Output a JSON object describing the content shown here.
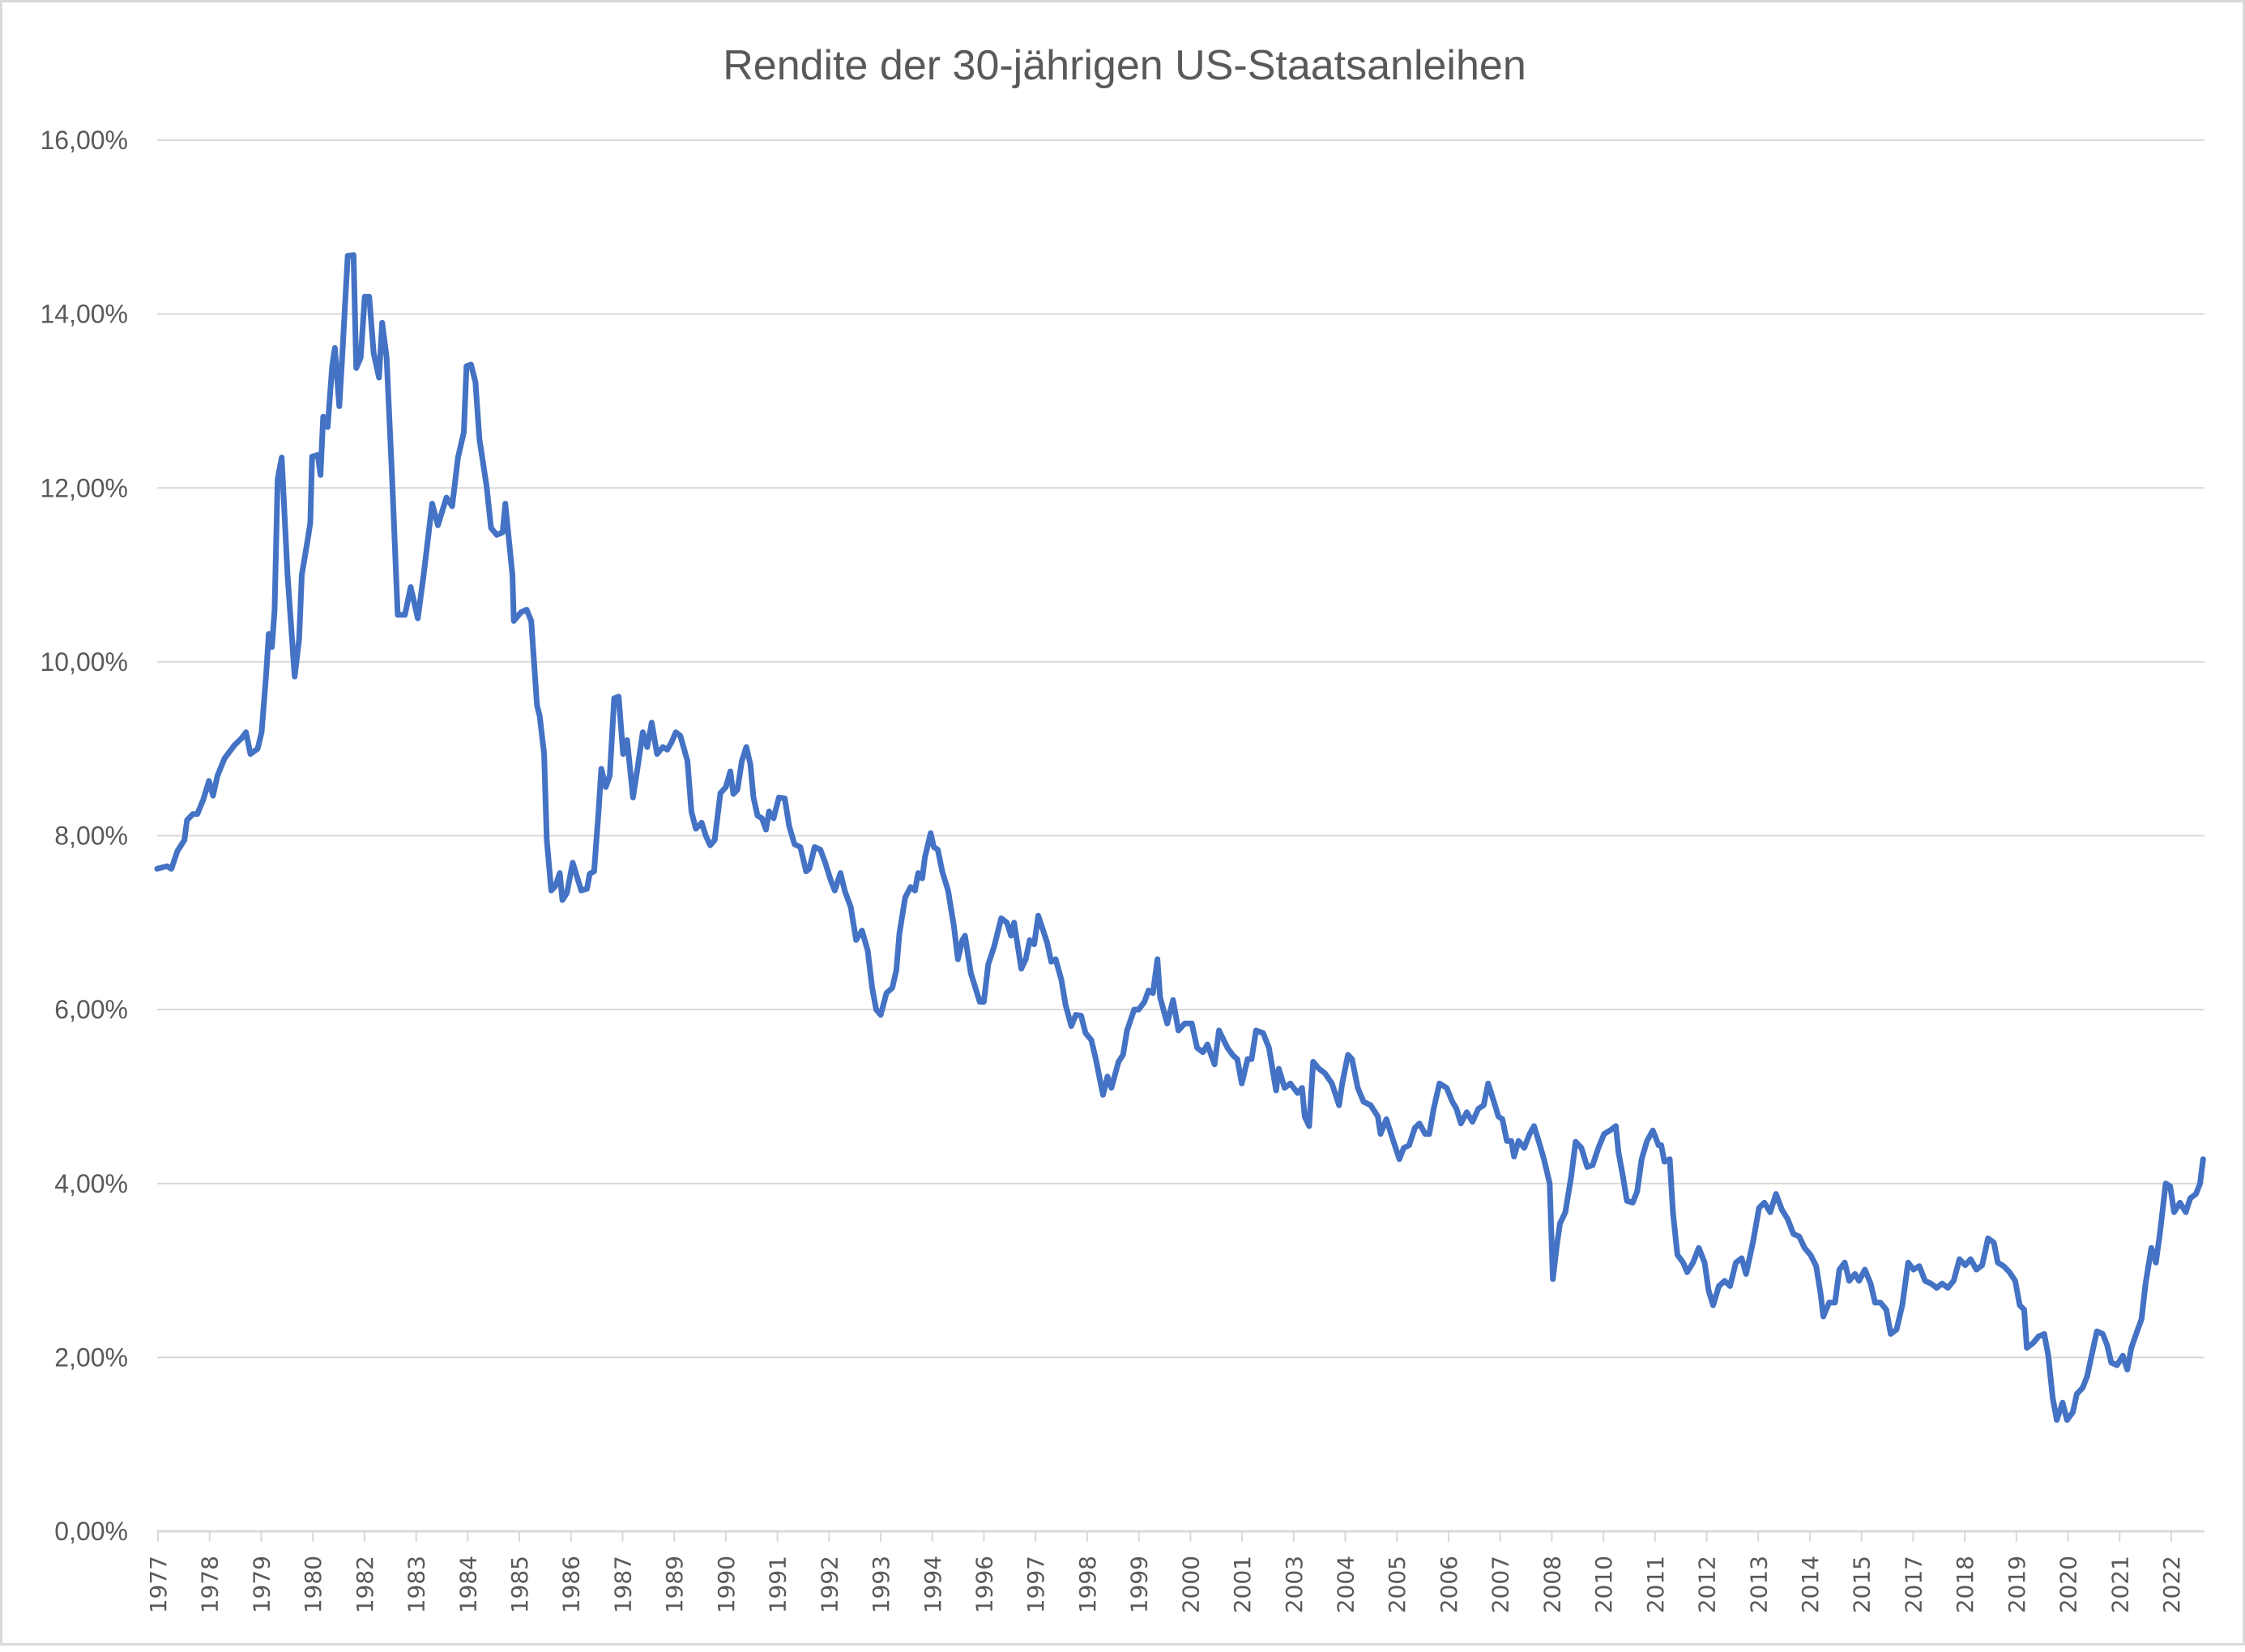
{
  "chart_data": {
    "type": "line",
    "title": "Rendite der 30-jährigen US-Staatsanleihen",
    "xlabel": "",
    "ylabel": "",
    "ylim": [
      0,
      16
    ],
    "y_tick_labels": [
      "0,00%",
      "2,00%",
      "4,00%",
      "6,00%",
      "8,00%",
      "10,00%",
      "12,00%",
      "14,00%",
      "16,00%"
    ],
    "x_tick_labels": [
      "1977",
      "1978",
      "1979",
      "1980",
      "1982",
      "1983",
      "1984",
      "1985",
      "1986",
      "1987",
      "1989",
      "1990",
      "1991",
      "1992",
      "1993",
      "1994",
      "1996",
      "1997",
      "1998",
      "1999",
      "2000",
      "2001",
      "2003",
      "2004",
      "2005",
      "2006",
      "2007",
      "2008",
      "2010",
      "2011",
      "2012",
      "2013",
      "2014",
      "2015",
      "2017",
      "2018",
      "2019",
      "2020",
      "2021",
      "2022"
    ],
    "xlim": [
      1977.0,
      2022.87
    ],
    "grid": "horizontal",
    "legend": "none",
    "series_color": "#4472C4",
    "series": [
      {
        "x": [
          1977.0,
          1977.22,
          1977.32,
          1977.45,
          1977.61,
          1977.67,
          1977.8,
          1977.9,
          1978.03,
          1978.16,
          1978.25,
          1978.35,
          1978.51,
          1978.73,
          1978.89,
          1978.99,
          1979.09,
          1979.25,
          1979.34,
          1979.44,
          1979.5,
          1979.57,
          1979.63,
          1979.7,
          1979.79,
          1979.92,
          1980.08,
          1980.18,
          1980.24,
          1980.37,
          1980.43,
          1980.47,
          1980.6,
          1980.66,
          1980.72,
          1980.82,
          1980.92,
          1980.98,
          1981.08,
          1981.14,
          1981.27,
          1981.4,
          1981.46,
          1981.56,
          1981.65,
          1981.75,
          1981.85,
          1981.97,
          1982.04,
          1982.14,
          1982.26,
          1982.39,
          1982.55,
          1982.68,
          1982.84,
          1982.97,
          1983.16,
          1983.29,
          1983.48,
          1983.61,
          1983.74,
          1983.87,
          1983.93,
          1984.03,
          1984.13,
          1984.22,
          1984.38,
          1984.48,
          1984.61,
          1984.74,
          1984.8,
          1984.96,
          1984.99,
          1985.15,
          1985.28,
          1985.38,
          1985.51,
          1985.57,
          1985.67,
          1985.73,
          1985.83,
          1985.92,
          1986.02,
          1986.08,
          1986.18,
          1986.31,
          1986.5,
          1986.63,
          1986.69,
          1986.79,
          1986.89,
          1986.95,
          1987.05,
          1987.14,
          1987.24,
          1987.34,
          1987.44,
          1987.53,
          1987.66,
          1987.76,
          1987.88,
          1987.98,
          1988.08,
          1988.2,
          1988.33,
          1988.43,
          1988.52,
          1988.62,
          1988.72,
          1988.88,
          1988.97,
          1989.07,
          1989.2,
          1989.29,
          1989.39,
          1989.49,
          1989.62,
          1989.74,
          1989.84,
          1989.91,
          1990.0,
          1990.1,
          1990.2,
          1990.29,
          1990.36,
          1990.45,
          1990.55,
          1990.64,
          1990.71,
          1990.81,
          1990.93,
          1991.06,
          1991.16,
          1991.28,
          1991.41,
          1991.54,
          1991.61,
          1991.73,
          1991.86,
          1991.96,
          1992.09,
          1992.18,
          1992.31,
          1992.41,
          1992.54,
          1992.66,
          1992.79,
          1992.92,
          1993.02,
          1993.11,
          1993.21,
          1993.34,
          1993.47,
          1993.56,
          1993.63,
          1993.76,
          1993.88,
          1993.98,
          1994.05,
          1994.14,
          1994.2,
          1994.33,
          1994.4,
          1994.49,
          1994.59,
          1994.72,
          1994.85,
          1994.94,
          1995.04,
          1995.1,
          1995.23,
          1995.43,
          1995.52,
          1995.62,
          1995.75,
          1995.91,
          1996.04,
          1996.13,
          1996.2,
          1996.36,
          1996.46,
          1996.55,
          1996.65,
          1996.74,
          1996.94,
          1997.03,
          1997.13,
          1997.26,
          1997.35,
          1997.48,
          1997.58,
          1997.7,
          1997.8,
          1997.93,
          1998.03,
          1998.19,
          1998.29,
          1998.38,
          1998.54,
          1998.64,
          1998.73,
          1998.89,
          1998.99,
          1999.12,
          1999.21,
          1999.31,
          1999.41,
          1999.47,
          1999.63,
          1999.76,
          1999.88,
          2000.02,
          2000.18,
          2000.3,
          2000.43,
          2000.53,
          2000.69,
          2000.79,
          2000.98,
          2001.11,
          2001.2,
          2001.3,
          2001.43,
          2001.52,
          2001.62,
          2001.78,
          2001.91,
          2002.07,
          2002.13,
          2002.26,
          2002.39,
          2002.55,
          2002.65,
          2002.71,
          2002.81,
          2002.9,
          2003.03,
          2003.16,
          2003.32,
          2003.48,
          2003.55,
          2003.68,
          2003.77,
          2003.9,
          2004.03,
          2004.19,
          2004.35,
          2004.41,
          2004.54,
          2004.67,
          2004.83,
          2004.93,
          2005.05,
          2005.18,
          2005.28,
          2005.41,
          2005.5,
          2005.6,
          2005.73,
          2005.89,
          2006.02,
          2006.11,
          2006.21,
          2006.34,
          2006.47,
          2006.6,
          2006.72,
          2006.82,
          2006.95,
          2007.05,
          2007.14,
          2007.24,
          2007.34,
          2007.4,
          2007.5,
          2007.63,
          2007.75,
          2007.85,
          2007.98,
          2008.07,
          2008.2,
          2008.27,
          2008.36,
          2008.43,
          2008.55,
          2008.68,
          2008.78,
          2008.91,
          2009.04,
          2009.16,
          2009.29,
          2009.42,
          2009.55,
          2009.68,
          2009.74,
          2009.84,
          2009.93,
          2010.06,
          2010.16,
          2010.26,
          2010.38,
          2010.51,
          2010.64,
          2010.7,
          2010.77,
          2010.89,
          2010.96,
          2011.06,
          2011.19,
          2011.28,
          2011.41,
          2011.54,
          2011.67,
          2011.76,
          2011.86,
          2011.99,
          2012.12,
          2012.24,
          2012.37,
          2012.5,
          2012.6,
          2012.76,
          2012.89,
          2013.01,
          2013.14,
          2013.27,
          2013.4,
          2013.53,
          2013.66,
          2013.79,
          2013.91,
          2014.04,
          2014.17,
          2014.27,
          2014.33,
          2014.46,
          2014.59,
          2014.69,
          2014.81,
          2014.91,
          2015.04,
          2015.13,
          2015.26,
          2015.39,
          2015.49,
          2015.61,
          2015.74,
          2015.84,
          2015.97,
          2016.1,
          2016.23,
          2016.35,
          2016.48,
          2016.61,
          2016.74,
          2016.87,
          2016.99,
          2017.12,
          2017.25,
          2017.38,
          2017.51,
          2017.63,
          2017.76,
          2017.89,
          2018.02,
          2018.15,
          2018.24,
          2018.37,
          2018.5,
          2018.63,
          2018.73,
          2018.83,
          2018.89,
          2019.02,
          2019.15,
          2019.28,
          2019.37,
          2019.47,
          2019.56,
          2019.69,
          2019.79,
          2019.92,
          2020.01,
          2020.14,
          2020.24,
          2020.34,
          2020.46,
          2020.59,
          2020.69,
          2020.78,
          2020.91,
          2021.04,
          2021.14,
          2021.23,
          2021.36,
          2021.46,
          2021.55,
          2021.68,
          2021.78,
          2021.87,
          2022.0,
          2022.1,
          2022.19,
          2022.32,
          2022.45,
          2022.55,
          2022.68,
          2022.77,
          2022.84
        ],
        "y": [
          7.62,
          7.65,
          7.62,
          7.82,
          7.95,
          8.18,
          8.25,
          8.25,
          8.41,
          8.63,
          8.46,
          8.69,
          8.89,
          9.04,
          9.12,
          9.19,
          8.94,
          9.0,
          9.19,
          9.84,
          10.32,
          10.17,
          10.59,
          12.1,
          12.35,
          11.0,
          9.83,
          10.26,
          11.0,
          11.4,
          11.6,
          12.36,
          12.38,
          12.15,
          12.82,
          12.7,
          13.4,
          13.61,
          12.94,
          13.46,
          14.67,
          14.68,
          13.38,
          13.5,
          14.2,
          14.2,
          13.55,
          13.27,
          13.9,
          13.5,
          12.15,
          10.54,
          10.54,
          10.86,
          10.5,
          11.0,
          11.82,
          11.57,
          11.89,
          11.79,
          12.35,
          12.64,
          13.4,
          13.42,
          13.22,
          12.56,
          12.02,
          11.54,
          11.46,
          11.49,
          11.82,
          11.0,
          10.47,
          10.57,
          10.6,
          10.47,
          9.5,
          9.38,
          8.94,
          7.95,
          7.37,
          7.42,
          7.57,
          7.26,
          7.34,
          7.69,
          7.37,
          7.39,
          7.56,
          7.59,
          8.28,
          8.77,
          8.56,
          8.69,
          9.58,
          9.6,
          8.94,
          9.1,
          8.44,
          8.77,
          9.19,
          9.02,
          9.3,
          8.94,
          9.02,
          8.99,
          9.07,
          9.19,
          9.15,
          8.86,
          8.28,
          8.08,
          8.15,
          8.0,
          7.89,
          7.95,
          8.49,
          8.56,
          8.74,
          8.48,
          8.53,
          8.86,
          9.02,
          8.82,
          8.44,
          8.23,
          8.2,
          8.07,
          8.28,
          8.2,
          8.44,
          8.43,
          8.11,
          7.9,
          7.87,
          7.59,
          7.62,
          7.87,
          7.84,
          7.7,
          7.49,
          7.37,
          7.57,
          7.36,
          7.18,
          6.8,
          6.91,
          6.68,
          6.25,
          6.0,
          5.94,
          6.19,
          6.25,
          6.45,
          6.88,
          7.29,
          7.41,
          7.37,
          7.57,
          7.51,
          7.75,
          8.03,
          7.87,
          7.84,
          7.59,
          7.37,
          6.96,
          6.58,
          6.8,
          6.85,
          6.42,
          6.09,
          6.09,
          6.52,
          6.72,
          7.05,
          7.0,
          6.85,
          7.0,
          6.47,
          6.58,
          6.8,
          6.75,
          7.08,
          6.77,
          6.55,
          6.58,
          6.34,
          6.06,
          5.81,
          5.94,
          5.93,
          5.73,
          5.65,
          5.43,
          5.02,
          5.23,
          5.1,
          5.4,
          5.48,
          5.76,
          6.0,
          6.0,
          6.09,
          6.22,
          6.19,
          6.58,
          6.14,
          5.84,
          6.11,
          5.76,
          5.84,
          5.84,
          5.56,
          5.51,
          5.6,
          5.37,
          5.76,
          5.56,
          5.47,
          5.43,
          5.15,
          5.43,
          5.43,
          5.76,
          5.73,
          5.56,
          5.07,
          5.32,
          5.1,
          5.15,
          5.04,
          5.1,
          4.77,
          4.66,
          5.4,
          5.32,
          5.27,
          5.15,
          4.9,
          5.15,
          5.48,
          5.43,
          5.1,
          4.94,
          4.9,
          4.77,
          4.57,
          4.74,
          4.53,
          4.28,
          4.41,
          4.44,
          4.64,
          4.69,
          4.57,
          4.57,
          4.86,
          5.15,
          5.1,
          4.94,
          4.86,
          4.69,
          4.82,
          4.71,
          4.86,
          4.9,
          5.15,
          4.94,
          4.77,
          4.74,
          4.49,
          4.49,
          4.31,
          4.49,
          4.41,
          4.57,
          4.66,
          4.44,
          4.28,
          4.0,
          2.9,
          3.29,
          3.54,
          3.67,
          4.08,
          4.48,
          4.41,
          4.19,
          4.21,
          4.41,
          4.57,
          4.61,
          4.66,
          4.36,
          4.08,
          3.8,
          3.78,
          3.91,
          4.28,
          4.49,
          4.61,
          4.44,
          4.44,
          4.25,
          4.28,
          3.67,
          3.18,
          3.09,
          2.98,
          3.09,
          3.26,
          3.09,
          2.77,
          2.6,
          2.82,
          2.88,
          2.82,
          3.09,
          3.14,
          2.96,
          3.34,
          3.72,
          3.78,
          3.67,
          3.88,
          3.7,
          3.59,
          3.42,
          3.39,
          3.26,
          3.18,
          3.05,
          2.73,
          2.47,
          2.63,
          2.63,
          3.01,
          3.09,
          2.88,
          2.96,
          2.88,
          3.01,
          2.85,
          2.63,
          2.63,
          2.55,
          2.27,
          2.32,
          2.6,
          3.09,
          3.01,
          3.05,
          2.88,
          2.85,
          2.8,
          2.85,
          2.8,
          2.88,
          3.13,
          3.06,
          3.13,
          3.01,
          3.06,
          3.37,
          3.32,
          3.09,
          3.05,
          2.98,
          2.88,
          2.6,
          2.55,
          2.11,
          2.16,
          2.24,
          2.27,
          2.02,
          1.53,
          1.28,
          1.48,
          1.28,
          1.37,
          1.58,
          1.65,
          1.78,
          2.02,
          2.3,
          2.27,
          2.14,
          1.94,
          1.91,
          2.02,
          1.86,
          2.11,
          2.3,
          2.44,
          2.85,
          3.26,
          3.09,
          3.42,
          4.0,
          3.97,
          3.67,
          3.78,
          3.67,
          3.83,
          3.88,
          4.0,
          4.28
        ]
      }
    ]
  }
}
